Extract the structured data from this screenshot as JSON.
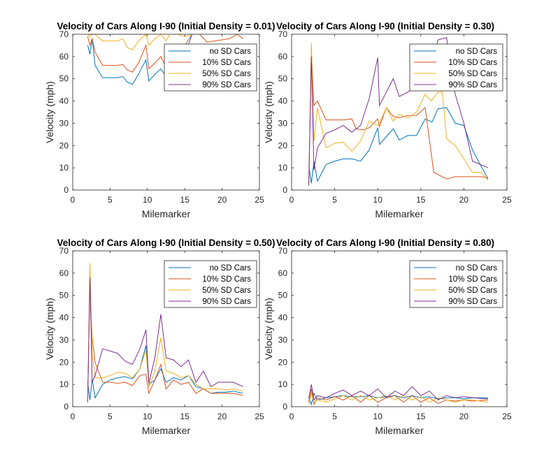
{
  "chart_data": [
    {
      "type": "line",
      "title": "Velocity of Cars Along I-90 (Initial Density = 0.01)",
      "xlabel": "Milemarker",
      "ylabel": "Velocity (mph)",
      "xlim": [
        0,
        25
      ],
      "ylim": [
        0,
        70
      ],
      "xticks": [
        "0",
        "5",
        "10",
        "15",
        "20",
        "25"
      ],
      "yticks": [
        "0",
        "10",
        "20",
        "30",
        "40",
        "50",
        "60",
        "70"
      ],
      "legend_position": "top-right",
      "series": [
        {
          "name": "no SD Cars",
          "color": "#0072BD",
          "x": [
            2,
            2.3,
            2.6,
            3,
            4,
            5,
            6,
            6.7,
            7.3,
            8,
            8.8,
            9.8,
            10.2,
            11,
            11.8,
            12.5,
            13,
            14,
            15,
            16,
            17
          ],
          "y": [
            65,
            61,
            68,
            56,
            50.5,
            50.5,
            50.5,
            51,
            48.5,
            47.5,
            52,
            58.5,
            49,
            52,
            54.5,
            51,
            54,
            58,
            61,
            70,
            70
          ]
        },
        {
          "name": "10% SD Cars",
          "color": "#D95319",
          "x": [
            2,
            2.3,
            2.6,
            3,
            4,
            5,
            6,
            6.7,
            7.3,
            8,
            8.8,
            9.8,
            10.2,
            11,
            11.8,
            12.5,
            13,
            14,
            15,
            16,
            17,
            18,
            19,
            20,
            21,
            22,
            22.8
          ],
          "y": [
            69,
            65,
            68,
            62,
            56,
            56,
            56,
            56.5,
            54,
            53,
            57,
            65,
            54.5,
            57,
            60,
            55,
            58,
            62,
            65,
            70,
            70,
            66.5,
            67,
            67.5,
            68,
            70,
            68
          ]
        },
        {
          "name": "50% SD Cars",
          "color": "#EDB120",
          "x": [
            2,
            2.3,
            2.6,
            3,
            4,
            5,
            6,
            6.7,
            7.3,
            8,
            8.8,
            9.8,
            10.2,
            11,
            11.8,
            12.5,
            13,
            14,
            15,
            16
          ],
          "y": [
            70,
            69,
            70,
            70,
            67,
            67,
            67,
            68,
            64,
            63,
            67,
            70,
            65,
            68,
            70,
            67,
            70,
            70,
            69,
            70
          ]
        },
        {
          "name": "90% SD Cars",
          "color": "#7E2F8E",
          "x": [
            2,
            2.3,
            2.6,
            3,
            4,
            5,
            6,
            7,
            8,
            9,
            10
          ],
          "y": [
            70,
            70,
            70,
            70,
            70,
            70,
            70,
            70,
            70,
            70,
            70
          ]
        }
      ]
    },
    {
      "type": "line",
      "title": "Velocity of Cars Along I-90 (Initial Density = 0.30)",
      "xlabel": "Milemarker",
      "ylabel": "Velocity (mph)",
      "xlim": [
        0,
        25
      ],
      "ylim": [
        0,
        70
      ],
      "xticks": [
        "0",
        "5",
        "10",
        "15",
        "20",
        "25"
      ],
      "yticks": [
        "0",
        "10",
        "20",
        "30",
        "40",
        "50",
        "60",
        "70"
      ],
      "legend_position": "top-right",
      "series": [
        {
          "name": "no SD Cars",
          "color": "#0072BD",
          "x": [
            2,
            2.3,
            2.6,
            3,
            4,
            5,
            6,
            7,
            8,
            9,
            10,
            10.2,
            11,
            11.8,
            12.5,
            13.5,
            14.5,
            15.5,
            16.3,
            17,
            18,
            19,
            20,
            21,
            22.8
          ],
          "y": [
            11,
            3,
            13,
            4,
            11.5,
            13,
            14,
            14,
            13,
            18,
            28,
            20.5,
            24,
            27.5,
            22.5,
            24.5,
            24.5,
            32,
            30.5,
            36.5,
            37,
            30,
            29,
            18,
            5
          ]
        },
        {
          "name": "10% SD Cars",
          "color": "#D95319",
          "x": [
            2,
            2.3,
            2.6,
            3,
            4,
            5,
            6,
            7,
            7.5,
            8.3,
            9,
            10,
            10.2,
            11,
            11.8,
            12.5,
            13.5,
            14.5,
            15.5,
            16.5,
            17.5,
            18,
            19,
            20,
            21,
            22,
            22.8
          ],
          "y": [
            3,
            62,
            38,
            40,
            31.5,
            31.5,
            31.5,
            32,
            27.5,
            27,
            28,
            32,
            28.5,
            37,
            33,
            32.5,
            33.5,
            33.5,
            37,
            8,
            6,
            5,
            6,
            6,
            6,
            6,
            5.5
          ]
        },
        {
          "name": "50% SD Cars",
          "color": "#EDB120",
          "x": [
            2,
            2.3,
            2.6,
            3,
            4,
            5,
            6,
            7,
            8,
            9,
            10,
            10.2,
            11,
            11.8,
            12.5,
            13.5,
            14.5,
            15.5,
            16.2,
            17,
            17.5,
            18,
            19,
            20,
            21,
            22,
            22.8
          ],
          "y": [
            2,
            66,
            22,
            37,
            19,
            21,
            21.5,
            17.5,
            22,
            31,
            29,
            30,
            37,
            31,
            34,
            32.5,
            35,
            43,
            40,
            44,
            44,
            23,
            20,
            14,
            8,
            8,
            4.5
          ]
        },
        {
          "name": "90% SD Cars",
          "color": "#7E2F8E",
          "x": [
            2,
            2.3,
            2.6,
            3,
            4,
            5,
            6,
            7,
            8,
            9,
            10,
            10.2,
            11,
            11.8,
            12.5,
            13.5,
            14.5,
            15.5,
            16.2,
            17,
            18,
            18.5,
            19,
            20,
            21,
            22.8
          ],
          "y": [
            2,
            60,
            9,
            19,
            25.5,
            27,
            29,
            26,
            29,
            41,
            59.5,
            38,
            44,
            50,
            42,
            44,
            47,
            48,
            52,
            67.5,
            68.5,
            52,
            43,
            30,
            13,
            10
          ]
        }
      ]
    },
    {
      "type": "line",
      "title": "Velocity of Cars Along I-90 (Initial Density = 0.50)",
      "xlabel": "Milemarker",
      "ylabel": "Velocity (mph)",
      "xlim": [
        0,
        25
      ],
      "ylim": [
        0,
        70
      ],
      "xticks": [
        "0",
        "5",
        "10",
        "15",
        "20",
        "25"
      ],
      "yticks": [
        "0",
        "10",
        "20",
        "30",
        "40",
        "50",
        "60",
        "70"
      ],
      "legend_position": "top-right",
      "series": [
        {
          "name": "no SD Cars",
          "color": "#0072BD",
          "x": [
            2,
            2.3,
            2.6,
            3,
            4,
            5,
            6,
            7,
            8,
            9,
            9.8,
            10.2,
            11,
            11.8,
            12.5,
            13.5,
            14.5,
            15.5,
            16.5,
            17.5,
            18.5,
            19.5,
            20.5,
            21.5,
            22.8
          ],
          "y": [
            11,
            3,
            12.5,
            4,
            10,
            12,
            13,
            13.5,
            12.5,
            17,
            27.5,
            10,
            12,
            17,
            11,
            13,
            12,
            14,
            9,
            8,
            6,
            6.5,
            6.5,
            7,
            6
          ]
        },
        {
          "name": "10% SD Cars",
          "color": "#D95319",
          "x": [
            2,
            2.3,
            2.6,
            3,
            4,
            5,
            6,
            7,
            8,
            9,
            9.8,
            10.2,
            11,
            11.8,
            12.5,
            13.5,
            14.5,
            15.5,
            16.5,
            17.5,
            18.5,
            19.5,
            20.5,
            21.5,
            22.8
          ],
          "y": [
            3,
            56,
            31,
            20,
            11,
            11,
            10.5,
            11,
            9.5,
            14,
            14.5,
            6,
            12,
            19,
            8,
            12,
            10,
            11,
            6,
            8,
            6,
            6,
            6,
            6,
            5
          ]
        },
        {
          "name": "50% SD Cars",
          "color": "#EDB120",
          "x": [
            2,
            2.3,
            2.6,
            3,
            4,
            5,
            6,
            7,
            8,
            9,
            9.8,
            10.2,
            11,
            11.8,
            12.5,
            13.5,
            14.5,
            15.5,
            16.5,
            17.5,
            18.5,
            19.5,
            20.5,
            21.5,
            22.8
          ],
          "y": [
            2,
            64.5,
            24,
            13,
            13,
            14,
            15.5,
            15,
            13,
            17,
            25.5,
            9,
            16,
            31,
            16,
            15,
            13,
            14,
            10,
            8,
            8,
            8,
            7.5,
            8,
            7
          ]
        },
        {
          "name": "90% SD Cars",
          "color": "#7E2F8E",
          "x": [
            2,
            2.3,
            2.6,
            3,
            4,
            5,
            6,
            7,
            8,
            9,
            9.8,
            10.2,
            11,
            11.8,
            12.5,
            13.5,
            14.5,
            15.5,
            16.5,
            17.5,
            18.5,
            19.5,
            20.5,
            21.5,
            22.8
          ],
          "y": [
            2,
            58,
            11,
            14,
            26,
            25,
            24,
            20.5,
            19,
            26,
            34.5,
            10.5,
            22,
            41.5,
            22,
            21,
            18,
            21,
            11,
            16,
            9,
            11,
            11,
            11,
            9
          ]
        }
      ]
    },
    {
      "type": "line",
      "title": "Velocity of Cars Along I-90 (Initial Density = 0.80)",
      "xlabel": "Milemarker",
      "ylabel": "Velocity (mph)",
      "xlim": [
        0,
        25
      ],
      "ylim": [
        0,
        70
      ],
      "xticks": [
        "0",
        "5",
        "10",
        "15",
        "20",
        "25"
      ],
      "yticks": [
        "0",
        "10",
        "20",
        "30",
        "40",
        "50",
        "60",
        "70"
      ],
      "legend_position": "top-right",
      "series": [
        {
          "name": "no SD Cars",
          "color": "#0072BD",
          "x": [
            2,
            2.3,
            2.6,
            3,
            4,
            5,
            6,
            7,
            8,
            9,
            10,
            11,
            12,
            13,
            14,
            15,
            16,
            17,
            18,
            19,
            20,
            21,
            22.8
          ],
          "y": [
            4,
            1,
            6,
            3,
            4,
            4.5,
            5,
            4.5,
            4.5,
            5,
            4,
            4.5,
            5,
            4,
            5,
            4,
            4.5,
            3.5,
            4,
            4,
            3.5,
            4,
            4
          ]
        },
        {
          "name": "10% SD Cars",
          "color": "#D95319",
          "x": [
            2,
            2.3,
            2.6,
            3,
            4,
            5,
            6,
            7,
            8,
            9,
            10,
            11,
            12,
            13,
            14,
            15,
            16,
            17,
            18,
            19,
            20,
            21,
            22.8
          ],
          "y": [
            2,
            8,
            1,
            4,
            3,
            4.5,
            3,
            5,
            2,
            5,
            2,
            4,
            5,
            2,
            5,
            2,
            4,
            1.5,
            3,
            2.5,
            3,
            2.5,
            3
          ]
        },
        {
          "name": "50% SD Cars",
          "color": "#EDB120",
          "x": [
            2,
            2.3,
            2.6,
            3,
            4,
            5,
            6,
            7,
            8,
            9,
            10,
            11,
            12,
            13,
            14,
            15,
            16,
            17,
            18,
            19,
            20,
            21,
            22.8
          ],
          "y": [
            1,
            6,
            2,
            3,
            2,
            3.5,
            5,
            3,
            5,
            3,
            4,
            5,
            3,
            5,
            3,
            4.5,
            2,
            4,
            3,
            2,
            3,
            3,
            2
          ]
        },
        {
          "name": "90% SD Cars",
          "color": "#7E2F8E",
          "x": [
            2,
            2.3,
            2.6,
            3,
            4,
            5,
            6,
            7,
            8,
            9,
            10,
            11,
            12,
            13,
            14,
            15,
            16,
            17,
            18,
            19,
            20,
            21,
            22.8
          ],
          "y": [
            4,
            10,
            3,
            5,
            4,
            6,
            7.5,
            5,
            7,
            5,
            8,
            4,
            7,
            5,
            9,
            5,
            7,
            3,
            5,
            4,
            4.5,
            4,
            3.5
          ]
        }
      ]
    }
  ]
}
